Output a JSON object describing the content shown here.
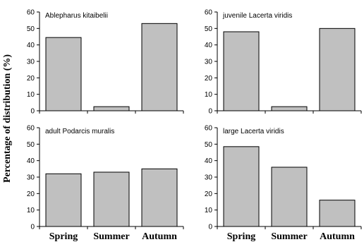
{
  "ylabel": "Percentage of distribution (%)",
  "bar_color": "#c0c0c0",
  "bar_edge": "#000000",
  "chart_data": [
    {
      "type": "bar",
      "title": "Ablepharus kitaibelii",
      "categories": [
        "Spring",
        "Summer",
        "Autumn"
      ],
      "values": [
        44.5,
        2.5,
        53
      ],
      "ylim": [
        0,
        60
      ],
      "yticks": [
        0,
        10,
        20,
        30,
        40,
        50,
        60
      ]
    },
    {
      "type": "bar",
      "title": "juvenile Lacerta viridis",
      "categories": [
        "Spring",
        "Summer",
        "Autumn"
      ],
      "values": [
        48,
        2.5,
        50
      ],
      "ylim": [
        0,
        60
      ],
      "yticks": [
        0,
        10,
        20,
        30,
        40,
        50,
        60
      ]
    },
    {
      "type": "bar",
      "title": "adult Podarcis muralis",
      "categories": [
        "Spring",
        "Summer",
        "Autumn"
      ],
      "values": [
        32,
        33,
        35
      ],
      "ylim": [
        0,
        60
      ],
      "yticks": [
        0,
        10,
        20,
        30,
        40,
        50,
        60
      ]
    },
    {
      "type": "bar",
      "title": "large Lacerta viridis",
      "categories": [
        "Spring",
        "Summer",
        "Autumn"
      ],
      "values": [
        48.5,
        36,
        16
      ],
      "ylim": [
        0,
        60
      ],
      "yticks": [
        0,
        10,
        20,
        30,
        40,
        50,
        60
      ]
    }
  ]
}
